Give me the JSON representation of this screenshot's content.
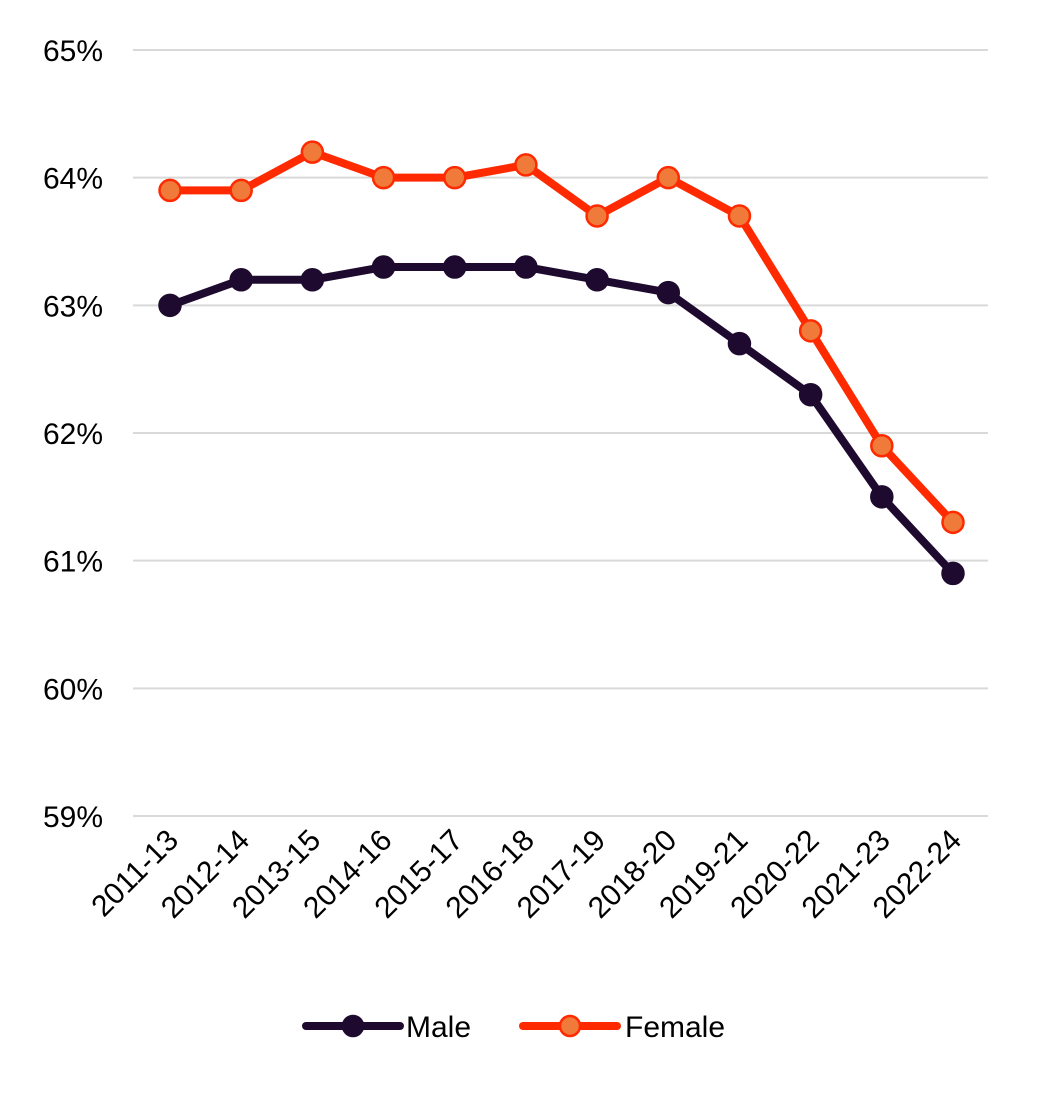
{
  "chart_data": {
    "type": "line",
    "title": "",
    "xlabel": "",
    "ylabel": "",
    "ylim": [
      59,
      65
    ],
    "yticks": [
      "59%",
      "60%",
      "61%",
      "62%",
      "63%",
      "64%",
      "65%"
    ],
    "ytick_values": [
      59,
      60,
      61,
      62,
      63,
      64,
      65
    ],
    "grid": "horizontal",
    "legend_position": "bottom",
    "categories": [
      "2011-13",
      "2012-14",
      "2013-15",
      "2014-16",
      "2015-17",
      "2016-18",
      "2017-19",
      "2018-20",
      "2019-21",
      "2020-22",
      "2021-23",
      "2022-24"
    ],
    "series": [
      {
        "name": "Male",
        "color": "#1e0a2e",
        "marker_fill": "#1e0a2e",
        "values": [
          63.0,
          63.2,
          63.2,
          63.3,
          63.3,
          63.3,
          63.2,
          63.1,
          62.7,
          62.3,
          61.5,
          60.9
        ]
      },
      {
        "name": "Female",
        "color": "#ff2a00",
        "marker_fill": "#f07a3a",
        "values": [
          63.9,
          63.9,
          64.2,
          64.0,
          64.0,
          64.1,
          63.7,
          64.0,
          63.7,
          62.8,
          61.9,
          61.3
        ]
      }
    ]
  }
}
